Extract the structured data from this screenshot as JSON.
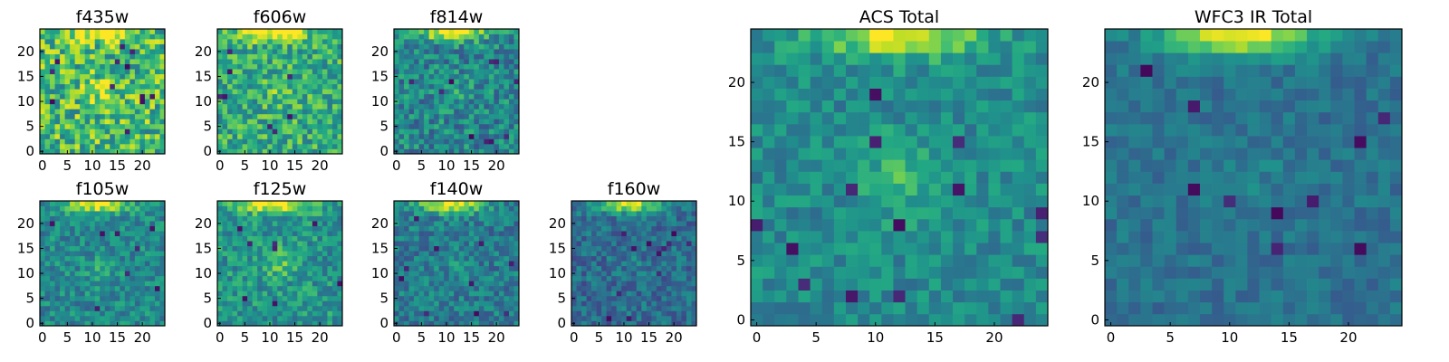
{
  "colormap": "viridis",
  "colors": {
    "viridis_low": "#440154",
    "viridis_mid": "#21908d",
    "viridis_high": "#fde725",
    "frame": "#000000",
    "background": "#ffffff"
  },
  "chart_data": [
    {
      "type": "heatmap",
      "title": "f435w",
      "x_ticks": [
        "0",
        "5",
        "10",
        "15",
        "20"
      ],
      "y_ticks": [
        "0",
        "5",
        "10",
        "15",
        "20"
      ],
      "xlim": [
        -0.5,
        24.5
      ],
      "ylim": [
        -0.5,
        24.5
      ],
      "grid_size": [
        25,
        25
      ],
      "pattern": {
        "base": 0.68,
        "noise": 0.55,
        "peak_x": 12,
        "peak_y": 24,
        "peak_width": 2.5,
        "peak_amp": 0.45,
        "blob_x": 12,
        "blob_y": 12,
        "blob_amp": 0.18,
        "dark_spots": 12,
        "seed": 11
      }
    },
    {
      "type": "heatmap",
      "title": "f606w",
      "x_ticks": [
        "0",
        "5",
        "10",
        "15",
        "20"
      ],
      "y_ticks": [
        "0",
        "5",
        "10",
        "15",
        "20"
      ],
      "xlim": [
        -0.5,
        24.5
      ],
      "ylim": [
        -0.5,
        24.5
      ],
      "grid_size": [
        25,
        25
      ],
      "pattern": {
        "base": 0.62,
        "noise": 0.45,
        "peak_x": 11,
        "peak_y": 24,
        "peak_width": 3.0,
        "peak_amp": 0.5,
        "blob_x": 12,
        "blob_y": 12,
        "blob_amp": 0.12,
        "dark_spots": 8,
        "seed": 23
      }
    },
    {
      "type": "heatmap",
      "title": "f814w",
      "x_ticks": [
        "0",
        "5",
        "10",
        "15",
        "20"
      ],
      "y_ticks": [
        "0",
        "5",
        "10",
        "15",
        "20"
      ],
      "xlim": [
        -0.5,
        24.5
      ],
      "ylim": [
        -0.5,
        24.5
      ],
      "grid_size": [
        25,
        25
      ],
      "pattern": {
        "base": 0.46,
        "noise": 0.4,
        "peak_x": 11,
        "peak_y": 24,
        "peak_width": 3.0,
        "peak_amp": 0.6,
        "blob_x": 12,
        "blob_y": 12,
        "blob_amp": 0.1,
        "dark_spots": 10,
        "seed": 37
      }
    },
    {
      "type": "heatmap",
      "title": "f105w",
      "x_ticks": [
        "0",
        "5",
        "10",
        "15",
        "20"
      ],
      "y_ticks": [
        "0",
        "5",
        "10",
        "15",
        "20"
      ],
      "xlim": [
        -0.5,
        24.5
      ],
      "ylim": [
        -0.5,
        24.5
      ],
      "grid_size": [
        25,
        25
      ],
      "pattern": {
        "base": 0.47,
        "noise": 0.32,
        "peak_x": 11,
        "peak_y": 24,
        "peak_width": 3.0,
        "peak_amp": 0.55,
        "blob_x": 12,
        "blob_y": 11,
        "blob_amp": 0.12,
        "dark_spots": 8,
        "seed": 41
      }
    },
    {
      "type": "heatmap",
      "title": "f125w",
      "x_ticks": [
        "0",
        "5",
        "10",
        "15",
        "20"
      ],
      "y_ticks": [
        "0",
        "5",
        "10",
        "15",
        "20"
      ],
      "xlim": [
        -0.5,
        24.5
      ],
      "ylim": [
        -0.5,
        24.5
      ],
      "grid_size": [
        25,
        25
      ],
      "pattern": {
        "base": 0.52,
        "noise": 0.35,
        "peak_x": 11,
        "peak_y": 24,
        "peak_width": 3.5,
        "peak_amp": 0.55,
        "blob_x": 12,
        "blob_y": 12,
        "blob_amp": 0.2,
        "dark_spots": 8,
        "seed": 53
      }
    },
    {
      "type": "heatmap",
      "title": "f140w",
      "x_ticks": [
        "0",
        "5",
        "10",
        "15",
        "20"
      ],
      "y_ticks": [
        "0",
        "5",
        "10",
        "15",
        "20"
      ],
      "xlim": [
        -0.5,
        24.5
      ],
      "ylim": [
        -0.5,
        24.5
      ],
      "grid_size": [
        25,
        25
      ],
      "pattern": {
        "base": 0.42,
        "noise": 0.32,
        "peak_x": 11,
        "peak_y": 24,
        "peak_width": 3.0,
        "peak_amp": 0.6,
        "blob_x": 12,
        "blob_y": 12,
        "blob_amp": 0.08,
        "dark_spots": 10,
        "seed": 67
      }
    },
    {
      "type": "heatmap",
      "title": "f160w",
      "x_ticks": [
        "0",
        "5",
        "10",
        "15",
        "20"
      ],
      "y_ticks": [
        "0",
        "5",
        "10",
        "15",
        "20"
      ],
      "xlim": [
        -0.5,
        24.5
      ],
      "ylim": [
        -0.5,
        24.5
      ],
      "grid_size": [
        25,
        25
      ],
      "pattern": {
        "base": 0.36,
        "noise": 0.3,
        "peak_x": 11,
        "peak_y": 24,
        "peak_width": 3.0,
        "peak_amp": 0.6,
        "blob_x": 12,
        "blob_y": 12,
        "blob_amp": 0.05,
        "dark_spots": 12,
        "seed": 79
      }
    },
    {
      "type": "heatmap",
      "title": "ACS Total",
      "x_ticks": [
        "0",
        "5",
        "10",
        "15",
        "20"
      ],
      "y_ticks": [
        "0",
        "5",
        "10",
        "15",
        "20"
      ],
      "xlim": [
        -0.5,
        24.5
      ],
      "ylim": [
        -0.5,
        24.5
      ],
      "grid_size": [
        25,
        25
      ],
      "pattern": {
        "base": 0.48,
        "noise": 0.26,
        "peak_x": 12,
        "peak_y": 24,
        "peak_width": 3.2,
        "peak_amp": 0.5,
        "blob_x": 12,
        "blob_y": 12,
        "blob_amp": 0.2,
        "dark_spots": 14,
        "seed": 97
      }
    },
    {
      "type": "heatmap",
      "title": "WFC3 IR Total",
      "x_ticks": [
        "0",
        "5",
        "10",
        "15",
        "20"
      ],
      "y_ticks": [
        "0",
        "5",
        "10",
        "15",
        "20"
      ],
      "xlim": [
        -0.5,
        24.5
      ],
      "ylim": [
        -0.5,
        24.5
      ],
      "grid_size": [
        25,
        25
      ],
      "pattern": {
        "base": 0.38,
        "noise": 0.18,
        "peak_x": 11,
        "peak_y": 24,
        "peak_width": 3.0,
        "peak_amp": 0.6,
        "blob_x": 12,
        "blob_y": 12,
        "blob_amp": 0.06,
        "dark_spots": 10,
        "seed": 131
      }
    }
  ]
}
